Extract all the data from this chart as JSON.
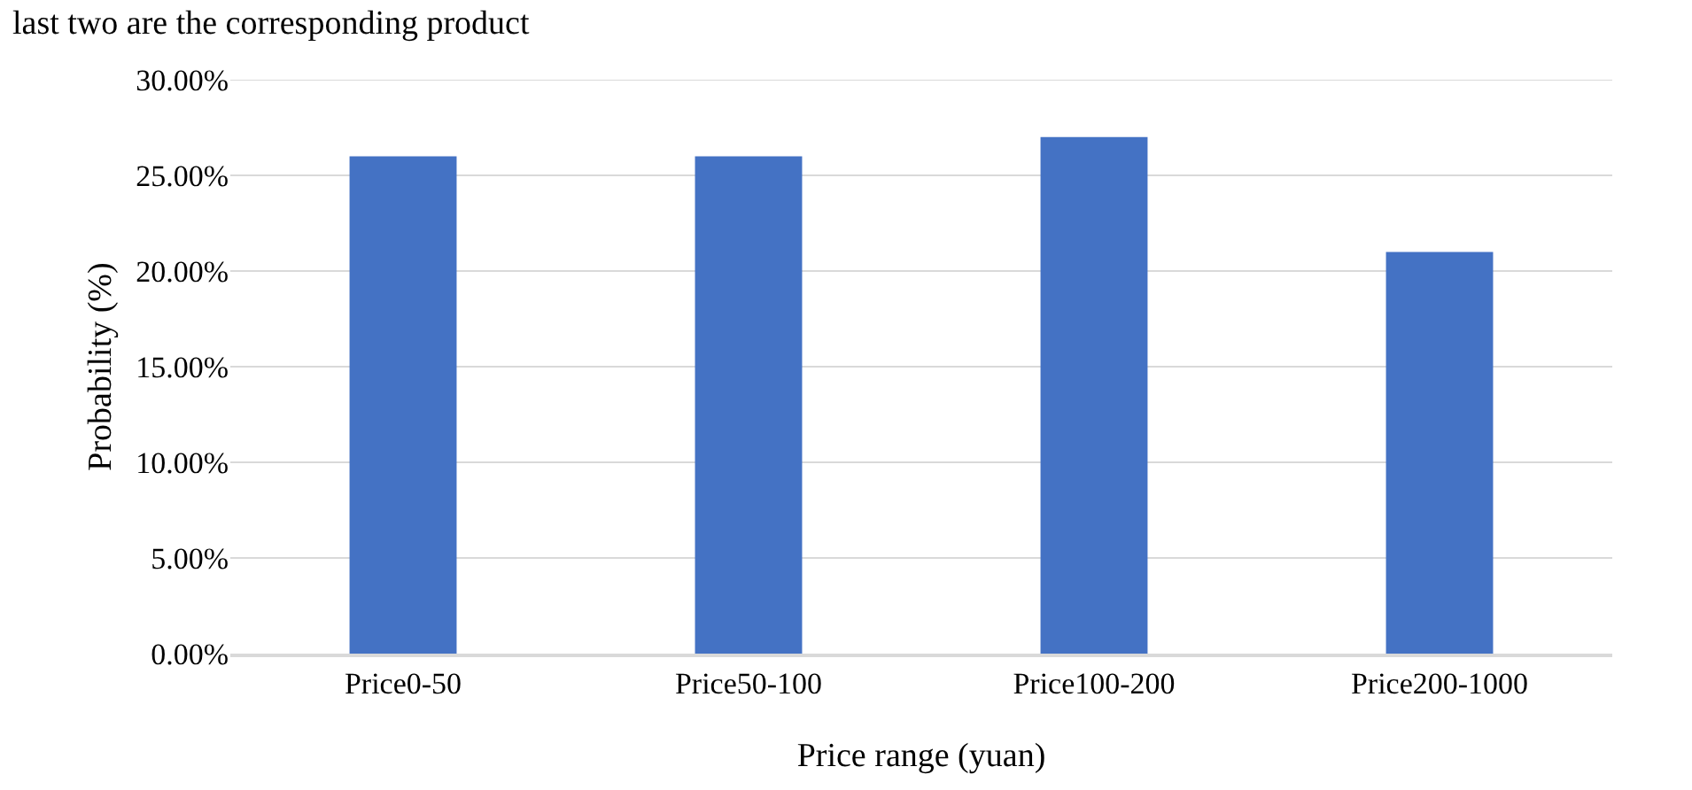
{
  "chart_data": {
    "type": "bar",
    "xlabel": "Price range (yuan)",
    "ylabel": "Probability (%)",
    "annotations": [
      "last two are the corresponding product"
    ],
    "categories": [
      "Price0-50",
      "Price50-100",
      "Price100-200",
      "Price200-1000"
    ],
    "values": [
      26,
      26,
      27,
      21
    ],
    "color": "#4472c4",
    "ylim": [
      0,
      30
    ],
    "yticks": [
      {
        "value": 0,
        "label": "0.00%"
      },
      {
        "value": 5,
        "label": "5.00%"
      },
      {
        "value": 10,
        "label": "10.00%"
      },
      {
        "value": 15,
        "label": "15.00%"
      },
      {
        "value": 20,
        "label": "20.00%"
      },
      {
        "value": 25,
        "label": "25.00%"
      },
      {
        "value": 30,
        "label": "30.00%"
      }
    ],
    "grid": "y"
  }
}
